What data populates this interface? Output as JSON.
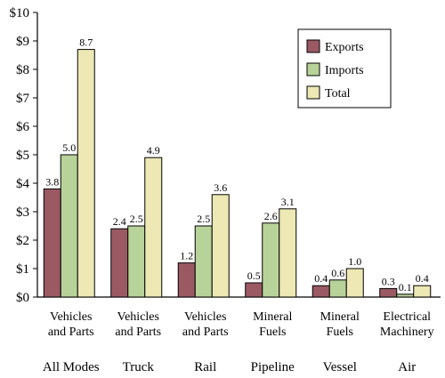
{
  "chart_data": {
    "type": "bar",
    "title": "",
    "xlabel": "",
    "ylabel": "",
    "ylim": [
      0,
      10
    ],
    "y_ticks": [
      "$0",
      "$1",
      "$2",
      "$3",
      "$4",
      "$5",
      "$6",
      "$7",
      "$8",
      "$9",
      "$10"
    ],
    "grid": false,
    "legend_position": "top-right",
    "categories": [
      {
        "line1": "Vehicles",
        "line2": "and Parts",
        "mode": "All Modes"
      },
      {
        "line1": "Vehicles",
        "line2": "and Parts",
        "mode": "Truck"
      },
      {
        "line1": "Vehicles",
        "line2": "and Parts",
        "mode": "Rail"
      },
      {
        "line1": "Mineral",
        "line2": "Fuels",
        "mode": "Pipeline"
      },
      {
        "line1": "Mineral",
        "line2": "Fuels",
        "mode": "Vessel"
      },
      {
        "line1": "Electrical",
        "line2": "Machinery",
        "mode": "Air"
      }
    ],
    "series": [
      {
        "name": "Exports",
        "color": "#9b5a63",
        "values": [
          3.8,
          2.4,
          1.2,
          0.5,
          0.4,
          0.3
        ]
      },
      {
        "name": "Imports",
        "color": "#b8d39a",
        "values": [
          5.0,
          2.5,
          2.5,
          2.6,
          0.6,
          0.1
        ]
      },
      {
        "name": "Total",
        "color": "#ede8b4",
        "values": [
          8.7,
          4.9,
          3.6,
          3.1,
          1.0,
          0.4
        ]
      }
    ]
  }
}
